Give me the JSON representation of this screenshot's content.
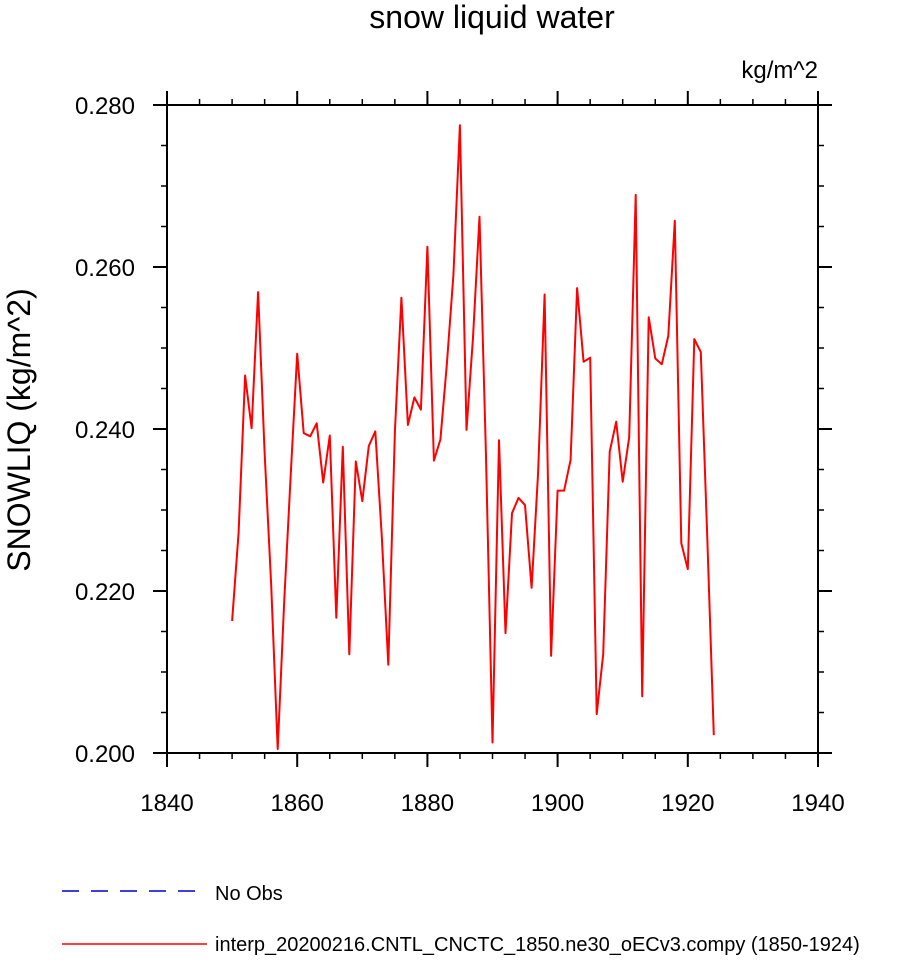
{
  "chart_data": {
    "type": "line",
    "title": "snow liquid water",
    "units_label": "kg/m^2",
    "ylabel": "SNOWLIQ  (kg/m^2)",
    "xlabel": "",
    "xlim": [
      1840,
      1940
    ],
    "ylim": [
      0.2,
      0.28
    ],
    "x_ticks": [
      "1840",
      "1860",
      "1880",
      "1900",
      "1920",
      "1940"
    ],
    "y_ticks": [
      "0.200",
      "0.220",
      "0.240",
      "0.260",
      "0.280"
    ],
    "x_tick_values": [
      1840,
      1860,
      1880,
      1900,
      1920,
      1940
    ],
    "y_tick_values": [
      0.2,
      0.22,
      0.24,
      0.26,
      0.28
    ],
    "x_minor_step": 5,
    "y_minor_step": 0.005,
    "grid": false,
    "series": [
      {
        "name": "interp_20200216.CNTL_CNCTC_1850.ne30_oECv3.compy (1850-1924)",
        "color": "#ff0000",
        "x": [
          1850,
          1851,
          1852,
          1853,
          1854,
          1855,
          1856,
          1857,
          1858,
          1859,
          1860,
          1861,
          1862,
          1863,
          1864,
          1865,
          1866,
          1867,
          1868,
          1869,
          1870,
          1871,
          1872,
          1873,
          1874,
          1875,
          1876,
          1877,
          1878,
          1879,
          1880,
          1881,
          1882,
          1883,
          1884,
          1885,
          1886,
          1887,
          1888,
          1889,
          1890,
          1891,
          1892,
          1893,
          1894,
          1895,
          1896,
          1897,
          1898,
          1899,
          1900,
          1901,
          1902,
          1903,
          1904,
          1905,
          1906,
          1907,
          1908,
          1909,
          1910,
          1911,
          1912,
          1913,
          1914,
          1915,
          1916,
          1917,
          1918,
          1919,
          1920,
          1921,
          1922,
          1923,
          1924
        ],
        "values": [
          0.2163,
          0.2272,
          0.2466,
          0.2401,
          0.2569,
          0.2371,
          0.2207,
          0.2005,
          0.2187,
          0.2343,
          0.2493,
          0.2395,
          0.2391,
          0.2407,
          0.2334,
          0.2392,
          0.2167,
          0.2378,
          0.2122,
          0.236,
          0.2311,
          0.2379,
          0.2397,
          0.2267,
          0.2109,
          0.2397,
          0.2562,
          0.2405,
          0.2439,
          0.2424,
          0.2625,
          0.2361,
          0.2387,
          0.2481,
          0.259,
          0.2775,
          0.2399,
          0.2513,
          0.2662,
          0.2366,
          0.2013,
          0.2386,
          0.2148,
          0.2296,
          0.2315,
          0.2306,
          0.2204,
          0.2346,
          0.2566,
          0.212,
          0.2324,
          0.2324,
          0.2362,
          0.2574,
          0.2483,
          0.2488,
          0.2048,
          0.2122,
          0.2372,
          0.2409,
          0.2335,
          0.239,
          0.2689,
          0.207,
          0.2538,
          0.2487,
          0.248,
          0.2515,
          0.2657,
          0.2259,
          0.2227,
          0.2511,
          0.2495,
          0.2265,
          0.2022
        ]
      }
    ],
    "legend": {
      "placement": "bottom-left",
      "entries": [
        {
          "label": "No Obs",
          "color": "#0000cc",
          "style": "dashed"
        },
        {
          "label": "interp_20200216.CNTL_CNCTC_1850.ne30_oECv3.compy (1850-1924)",
          "color": "#ff0000",
          "style": "solid"
        }
      ]
    }
  }
}
